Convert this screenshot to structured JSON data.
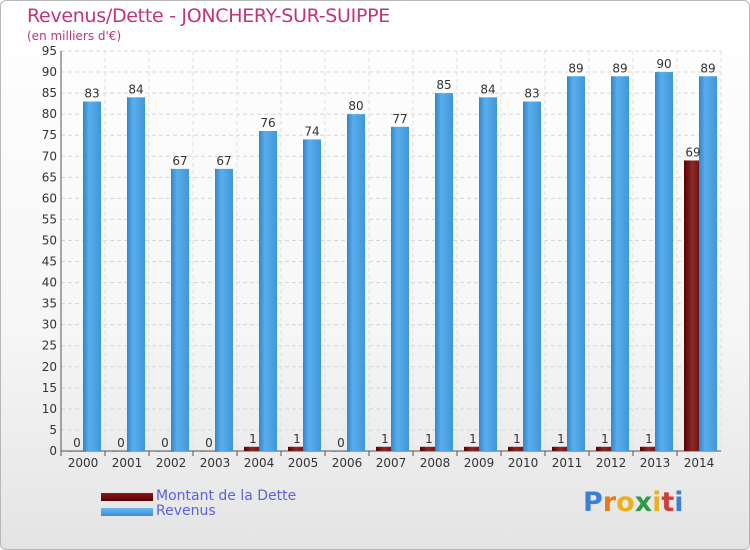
{
  "chart_data": {
    "type": "bar",
    "title": "Revenus/Dette - JONCHERY-SUR-SUIPPE",
    "subtitle": "(en milliers d'€)",
    "xlabel": "",
    "ylabel": "",
    "ylim": [
      0,
      95
    ],
    "ytick_step": 5,
    "grid": true,
    "legend_position": "bottom-left",
    "categories": [
      "2000",
      "2001",
      "2002",
      "2003",
      "2004",
      "2005",
      "2006",
      "2007",
      "2008",
      "2009",
      "2010",
      "2011",
      "2012",
      "2013",
      "2014"
    ],
    "series": [
      {
        "name": "Montant de la Dette",
        "color": "#7a0d0d",
        "values": [
          0,
          0,
          0,
          0,
          1,
          1,
          0,
          1,
          1,
          1,
          1,
          1,
          1,
          1,
          69
        ]
      },
      {
        "name": "Revenus",
        "color": "#4ea3e6",
        "values": [
          83,
          84,
          67,
          67,
          76,
          74,
          80,
          77,
          85,
          84,
          83,
          89,
          89,
          90,
          89
        ]
      }
    ]
  },
  "logo": {
    "letters": [
      "P",
      "r",
      "o",
      "x",
      "i",
      "t",
      "i"
    ],
    "colors": [
      "#3d7fd1",
      "#e87a1e",
      "#e8b21e",
      "#2f9a4a",
      "#e8b21e",
      "#d13d3d",
      "#3d7fd1"
    ]
  }
}
